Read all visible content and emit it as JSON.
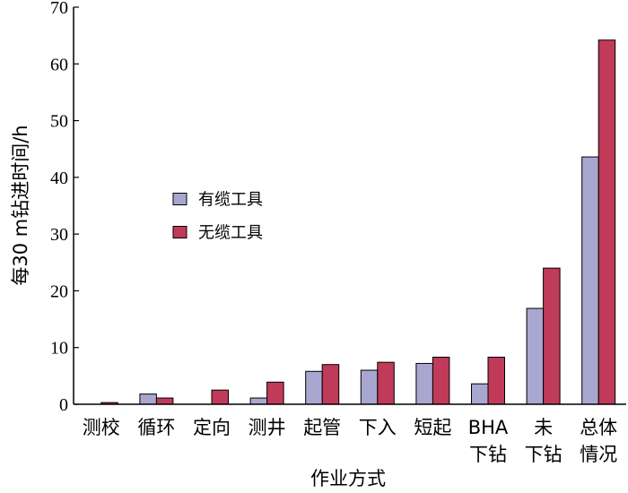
{
  "chart_data": {
    "type": "bar",
    "title": "",
    "xlabel": "作业方式",
    "ylabel": "每30 m钻进时间/h",
    "ylim": [
      0,
      70
    ],
    "yticks": [
      0,
      10,
      20,
      30,
      40,
      50,
      60,
      70
    ],
    "grid": false,
    "legend_position": "center-left",
    "categories": [
      [
        "测校"
      ],
      [
        "循环"
      ],
      [
        "定向"
      ],
      [
        "测井"
      ],
      [
        "起管"
      ],
      [
        "下入"
      ],
      [
        "短起"
      ],
      [
        "BHA",
        "下钻"
      ],
      [
        "未",
        "下钻"
      ],
      [
        "总体",
        "情况"
      ]
    ],
    "series": [
      {
        "name": "有缆工具",
        "color": "#a9a6cf",
        "values": [
          0,
          1.8,
          0,
          1.1,
          5.8,
          6.0,
          7.2,
          3.6,
          16.9,
          43.6
        ]
      },
      {
        "name": "无缆工具",
        "color": "#c03a5a",
        "values": [
          0.3,
          1.1,
          2.5,
          3.9,
          7.0,
          7.4,
          8.3,
          8.3,
          24.0,
          64.2
        ]
      }
    ]
  }
}
